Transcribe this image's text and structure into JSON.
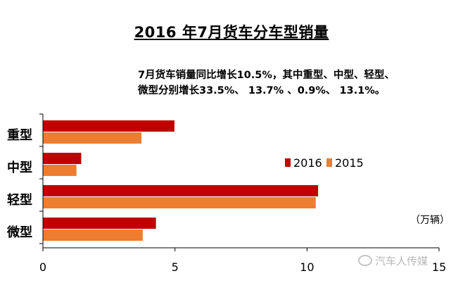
{
  "title": "2016 年7月货车分车型销量",
  "note_line1": "7月货车销量同比增长10.5%，其中重型、中型、轻型、",
  "note_line2": "微型分别增长33.5%、 13.7% 、0.9%、 13.1%。",
  "unit_label": "（万辆）",
  "watermark": "汽车人传媒",
  "colors": {
    "series_2016": "#c00000",
    "series_2015": "#ed7d31",
    "axis": "#000000"
  },
  "chart_data": {
    "type": "bar",
    "orientation": "horizontal",
    "categories": [
      "重型",
      "中型",
      "轻型",
      "微型"
    ],
    "series": [
      {
        "name": "2016",
        "values": [
          4.98,
          1.45,
          10.42,
          4.28
        ]
      },
      {
        "name": "2015",
        "values": [
          3.73,
          1.27,
          10.33,
          3.78
        ]
      }
    ],
    "xlim": [
      0,
      15
    ],
    "xticks": [
      0,
      5,
      10,
      15
    ],
    "legend": [
      "2016",
      "2015"
    ],
    "legend_position": "right",
    "grid": false
  }
}
